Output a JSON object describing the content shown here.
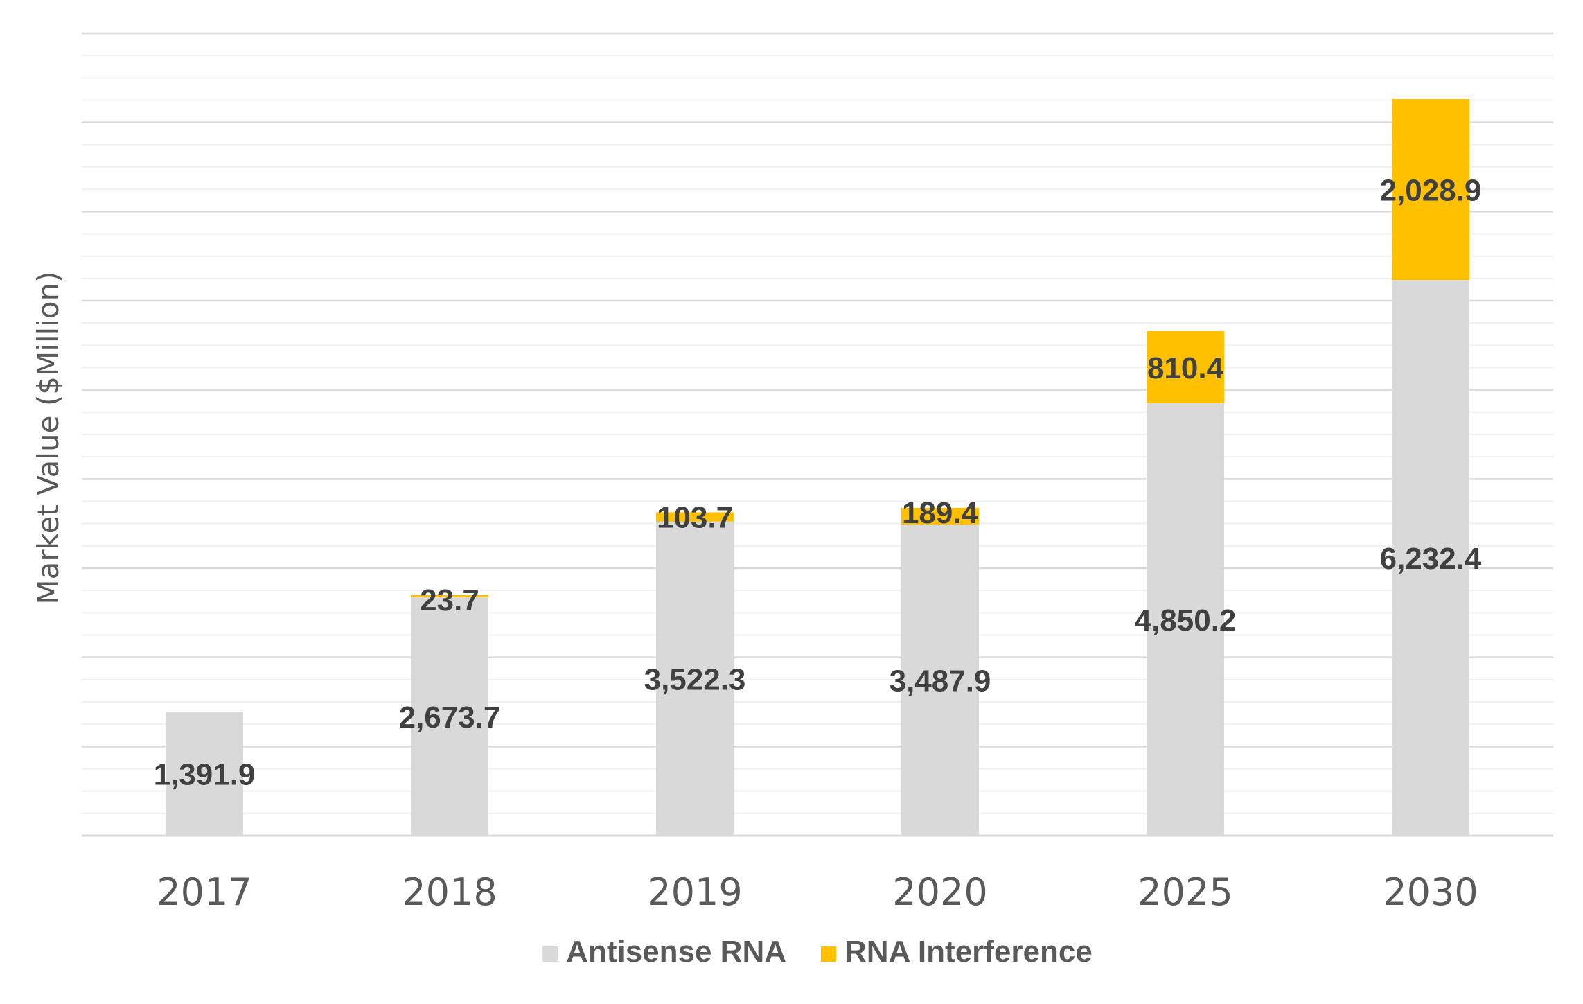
{
  "chart_data": {
    "type": "bar",
    "stacked": true,
    "title": "",
    "xlabel": "",
    "ylabel": "Market Value ($Million)",
    "categories": [
      "2017",
      "2018",
      "2019",
      "2020",
      "2025",
      "2030"
    ],
    "series": [
      {
        "name": "Antisense RNA",
        "color": "#d9d9d9",
        "values": [
          1391.9,
          2673.7,
          3522.3,
          3487.9,
          4850.2,
          6232.4
        ],
        "labels": [
          "1,391.9",
          "2,673.7",
          "3,522.3",
          "3,487.9",
          "4,850.2",
          "6,232.4"
        ]
      },
      {
        "name": "RNA Interference",
        "color": "#ffc000",
        "values": [
          0,
          23.7,
          103.7,
          189.4,
          810.4,
          2028.9
        ],
        "labels": [
          "",
          "23.7",
          "103.7",
          "189.4",
          "810.4",
          "2,028.9"
        ]
      }
    ],
    "ylim": [
      0,
      9000
    ],
    "y_tick_labels_shown": false,
    "grid": true,
    "legend": "bottom"
  }
}
